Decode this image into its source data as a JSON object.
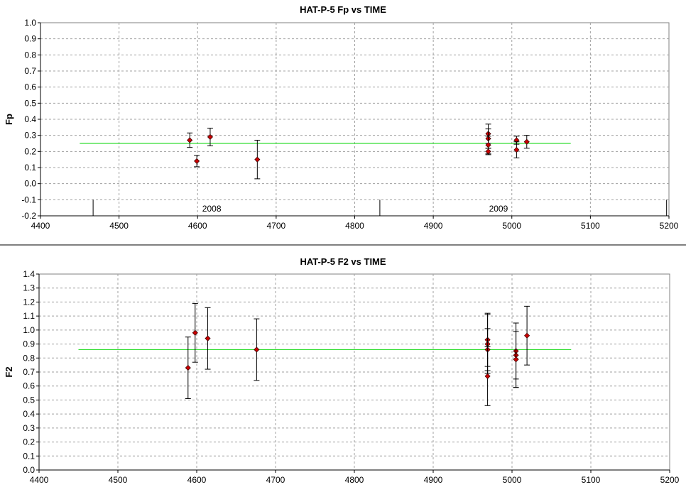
{
  "chart_data": [
    {
      "type": "scatter",
      "title": "HAT-P-5 Fp vs TIME",
      "xlabel": "",
      "ylabel": "Fp",
      "xlim": [
        4400,
        5200
      ],
      "ylim": [
        -0.2,
        1.0
      ],
      "xticks": [
        "4400",
        "4500",
        "4600",
        "4700",
        "4800",
        "4900",
        "5000",
        "5100",
        "5200"
      ],
      "yticks": [
        "-0.2",
        "-0.1",
        "0.0",
        "0.1",
        "0.2",
        "0.3",
        "0.4",
        "0.5",
        "0.6",
        "0.7",
        "0.8",
        "0.9",
        "1.0"
      ],
      "grid": true,
      "reference_line": {
        "y": 0.25,
        "x": [
          4450,
          5075
        ],
        "color": "#33dd33"
      },
      "year_markers": [
        {
          "x": 4467,
          "label": ""
        },
        {
          "x": 4832,
          "label": ""
        },
        {
          "x": 5197,
          "label": ""
        }
      ],
      "year_labels": [
        {
          "x": 4618,
          "label": "2008"
        },
        {
          "x": 4983,
          "label": "2009"
        }
      ],
      "points": [
        {
          "x": 4590,
          "y": 0.27,
          "err": 0.045
        },
        {
          "x": 4599,
          "y": 0.14,
          "err": 0.035
        },
        {
          "x": 4616,
          "y": 0.29,
          "err": 0.055
        },
        {
          "x": 4676,
          "y": 0.15,
          "err": 0.12
        },
        {
          "x": 4970,
          "y": 0.31,
          "err": 0.06
        },
        {
          "x": 4970,
          "y": 0.28,
          "err": 0.06
        },
        {
          "x": 4970,
          "y": 0.24,
          "err": 0.055
        },
        {
          "x": 4970,
          "y": 0.2,
          "err": 0.02
        },
        {
          "x": 5006,
          "y": 0.27,
          "err": 0.025
        },
        {
          "x": 5006,
          "y": 0.21,
          "err": 0.05
        },
        {
          "x": 5019,
          "y": 0.26,
          "err": 0.04
        }
      ],
      "point_color": "#cc0000"
    },
    {
      "type": "scatter",
      "title": "HAT-P-5 F2 vs TIME",
      "xlabel": "",
      "ylabel": "F2",
      "xlim": [
        4400,
        5200
      ],
      "ylim": [
        0.0,
        1.4
      ],
      "xticks": [
        "4400",
        "4500",
        "4600",
        "4700",
        "4800",
        "4900",
        "5000",
        "5100",
        "5200"
      ],
      "yticks": [
        "0.0",
        "0.1",
        "0.2",
        "0.3",
        "0.4",
        "0.5",
        "0.6",
        "0.7",
        "0.8",
        "0.9",
        "1.0",
        "1.1",
        "1.2",
        "1.3",
        "1.4"
      ],
      "grid": true,
      "reference_line": {
        "y": 0.86,
        "x": [
          4450,
          5075
        ],
        "color": "#33dd33"
      },
      "points": [
        {
          "x": 4589,
          "y": 0.73,
          "err": 0.22
        },
        {
          "x": 4598,
          "y": 0.98,
          "err": 0.21
        },
        {
          "x": 4614,
          "y": 0.94,
          "err": 0.22
        },
        {
          "x": 4676,
          "y": 0.86,
          "err": 0.22
        },
        {
          "x": 4969,
          "y": 0.93,
          "err": 0.19
        },
        {
          "x": 4969,
          "y": 0.9,
          "err": 0.21
        },
        {
          "x": 4969,
          "y": 0.86,
          "err": 0.15
        },
        {
          "x": 4969,
          "y": 0.67,
          "err": 0.21
        },
        {
          "x": 5005,
          "y": 0.85,
          "err": 0.2
        },
        {
          "x": 5005,
          "y": 0.82,
          "err": 0.23
        },
        {
          "x": 5005,
          "y": 0.79,
          "err": 0.2
        },
        {
          "x": 5019,
          "y": 0.96,
          "err": 0.21
        }
      ],
      "point_color": "#cc0000"
    }
  ]
}
